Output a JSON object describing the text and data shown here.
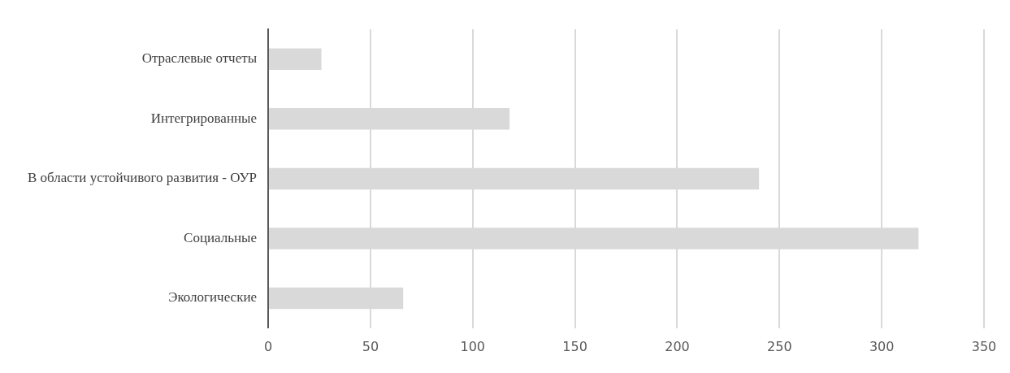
{
  "chart_data": {
    "type": "bar",
    "orientation": "horizontal",
    "categories": [
      "Отраслевые отчеты",
      "Интегрированные",
      "В области устойчивого развития - ОУР",
      "Социальные",
      "Экологические"
    ],
    "values": [
      26,
      118,
      240,
      318,
      66
    ],
    "color": "#d9d9d9",
    "xlim": [
      0,
      350
    ],
    "xticks": [
      0,
      50,
      100,
      150,
      200,
      250,
      300,
      350
    ],
    "grid": "x",
    "legend": false
  }
}
